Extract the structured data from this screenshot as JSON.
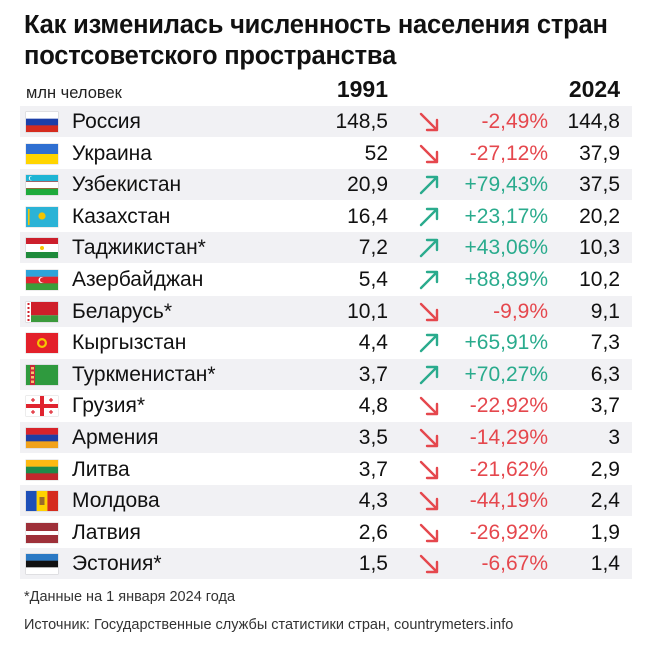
{
  "title": "Как изменилась численность населения стран постсоветского пространства",
  "unit_label": "млн человек",
  "year_start": "1991",
  "year_end": "2024",
  "footnote": "*Данные на 1 января 2024 года",
  "source": "Источник: Государственные службы статистики стран, countrymeters.info",
  "colors": {
    "increase": "#2aab8d",
    "decrease": "#e5474d",
    "row_alt": "#f1f1f4"
  },
  "chart_data": {
    "type": "table",
    "columns": [
      "",
      "1991",
      "",
      "2024"
    ],
    "rows": [
      {
        "country": "Россия",
        "flag": "russia-flag",
        "v1991": "148,5",
        "change": "-2,49%",
        "direction": "down",
        "v2024": "144,8"
      },
      {
        "country": "Украина",
        "flag": "ukraine-flag",
        "v1991": "52",
        "change": "-27,12%",
        "direction": "down",
        "v2024": "37,9"
      },
      {
        "country": "Узбекистан",
        "flag": "uzbekistan-flag",
        "v1991": "20,9",
        "change": "+79,43%",
        "direction": "up",
        "v2024": "37,5"
      },
      {
        "country": "Казахстан",
        "flag": "kazakhstan-flag",
        "v1991": "16,4",
        "change": "+23,17%",
        "direction": "up",
        "v2024": "20,2"
      },
      {
        "country": "Таджикистан*",
        "flag": "tajikistan-flag",
        "v1991": "7,2",
        "change": "+43,06%",
        "direction": "up",
        "v2024": "10,3"
      },
      {
        "country": "Азербайджан",
        "flag": "azerbaijan-flag",
        "v1991": "5,4",
        "change": "+88,89%",
        "direction": "up",
        "v2024": "10,2"
      },
      {
        "country": "Беларусь*",
        "flag": "belarus-flag",
        "v1991": "10,1",
        "change": "-9,9%",
        "direction": "down",
        "v2024": "9,1"
      },
      {
        "country": "Кыргызстан",
        "flag": "kyrgyzstan-flag",
        "v1991": "4,4",
        "change": "+65,91%",
        "direction": "up",
        "v2024": "7,3"
      },
      {
        "country": "Туркменистан*",
        "flag": "turkmenistan-flag",
        "v1991": "3,7",
        "change": "+70,27%",
        "direction": "up",
        "v2024": "6,3"
      },
      {
        "country": "Грузия*",
        "flag": "georgia-flag",
        "v1991": "4,8",
        "change": "-22,92%",
        "direction": "down",
        "v2024": "3,7"
      },
      {
        "country": "Армения",
        "flag": "armenia-flag",
        "v1991": "3,5",
        "change": "-14,29%",
        "direction": "down",
        "v2024": "3"
      },
      {
        "country": "Литва",
        "flag": "lithuania-flag",
        "v1991": "3,7",
        "change": "-21,62%",
        "direction": "down",
        "v2024": "2,9"
      },
      {
        "country": "Молдова",
        "flag": "moldova-flag",
        "v1991": "4,3",
        "change": "-44,19%",
        "direction": "down",
        "v2024": "2,4"
      },
      {
        "country": "Латвия",
        "flag": "latvia-flag",
        "v1991": "2,6",
        "change": "-26,92%",
        "direction": "down",
        "v2024": "1,9"
      },
      {
        "country": "Эстония*",
        "flag": "estonia-flag",
        "v1991": "1,5",
        "change": "-6,67%",
        "direction": "down",
        "v2024": "1,4"
      }
    ]
  }
}
